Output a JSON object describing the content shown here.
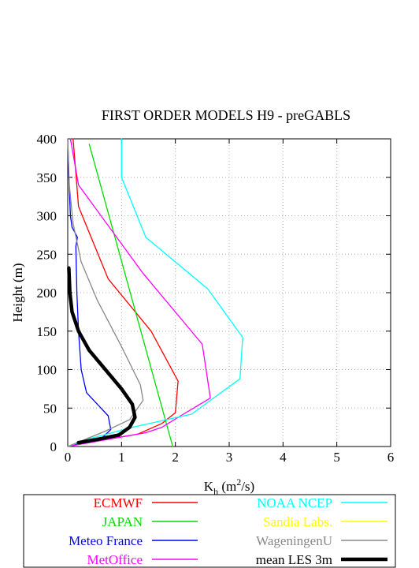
{
  "chart_data": {
    "type": "line",
    "title": "FIRST ORDER MODELS H9  - preGABLS",
    "xlabel": "K",
    "xlabel_sub": "h",
    "xlabel_units_pre": " (m",
    "xlabel_units_sup": "2",
    "xlabel_units_post": "/s)",
    "ylabel": "Height (m)",
    "xlim": [
      0,
      6
    ],
    "ylim": [
      0,
      400
    ],
    "xticks": [
      "0",
      "1",
      "2",
      "3",
      "4",
      "5",
      "6"
    ],
    "yticks": [
      "0",
      "50",
      "100",
      "150",
      "200",
      "250",
      "300",
      "350",
      "400"
    ],
    "grid": true,
    "legend_position": "bottom",
    "series": [
      {
        "name": "ECMWF",
        "color": "#ff0000",
        "points": [
          [
            0.0,
            0
          ],
          [
            0.6,
            8
          ],
          [
            1.3,
            16
          ],
          [
            1.75,
            30
          ],
          [
            2.0,
            44
          ],
          [
            2.05,
            85
          ],
          [
            1.55,
            150
          ],
          [
            0.75,
            218
          ],
          [
            0.2,
            312
          ],
          [
            0.1,
            400
          ]
        ]
      },
      {
        "name": "JAPAN",
        "color": "#00dd00",
        "points": [
          [
            1.95,
            0
          ],
          [
            0.4,
            393
          ]
        ]
      },
      {
        "name": "Meteo France",
        "color": "#0000ff",
        "points": [
          [
            0.0,
            0
          ],
          [
            0.35,
            6
          ],
          [
            0.65,
            12
          ],
          [
            0.8,
            22
          ],
          [
            0.75,
            40
          ],
          [
            0.55,
            55
          ],
          [
            0.35,
            70
          ],
          [
            0.25,
            100
          ],
          [
            0.2,
            150
          ],
          [
            0.17,
            200
          ],
          [
            0.15,
            260
          ],
          [
            0.18,
            272
          ],
          [
            0.12,
            280
          ],
          [
            0.08,
            285
          ],
          [
            0.05,
            300
          ],
          [
            0.02,
            350
          ],
          [
            0.0,
            400
          ]
        ]
      },
      {
        "name": "MetOffice",
        "color": "#ff00ff",
        "points": [
          [
            0.0,
            0
          ],
          [
            0.8,
            10
          ],
          [
            1.45,
            18
          ],
          [
            1.75,
            25
          ],
          [
            2.1,
            40
          ],
          [
            2.65,
            63
          ],
          [
            2.5,
            133
          ],
          [
            1.4,
            225
          ],
          [
            0.2,
            340
          ],
          [
            0.05,
            400
          ]
        ]
      },
      {
        "name": "NOAA NCEP",
        "color": "#00ffff",
        "points": [
          [
            0.0,
            0
          ],
          [
            0.4,
            10
          ],
          [
            1.2,
            25
          ],
          [
            2.3,
            42
          ],
          [
            3.2,
            88
          ],
          [
            3.25,
            142
          ],
          [
            2.6,
            205
          ],
          [
            1.45,
            272
          ],
          [
            1.0,
            350
          ],
          [
            1.0,
            400
          ]
        ]
      },
      {
        "name": "Sandia Labs.",
        "color": "#ffff00",
        "points": []
      },
      {
        "name": "WageningenU",
        "color": "#888888",
        "points": [
          [
            0.0,
            0
          ],
          [
            0.7,
            20
          ],
          [
            1.15,
            35
          ],
          [
            1.4,
            60
          ],
          [
            1.35,
            80
          ],
          [
            1.0,
            130
          ],
          [
            0.55,
            190
          ],
          [
            0.25,
            240
          ],
          [
            0.1,
            290
          ],
          [
            0.03,
            340
          ],
          [
            0.0,
            400
          ]
        ]
      },
      {
        "name": "mean LES 3m",
        "color": "#000000",
        "bold": true,
        "points": [
          [
            0.2,
            5
          ],
          [
            0.6,
            10
          ],
          [
            0.95,
            15
          ],
          [
            1.15,
            25
          ],
          [
            1.25,
            38
          ],
          [
            1.2,
            55
          ],
          [
            1.0,
            75
          ],
          [
            0.7,
            100
          ],
          [
            0.4,
            125
          ],
          [
            0.2,
            150
          ],
          [
            0.08,
            175
          ],
          [
            0.04,
            200
          ],
          [
            0.02,
            232
          ]
        ]
      }
    ]
  }
}
